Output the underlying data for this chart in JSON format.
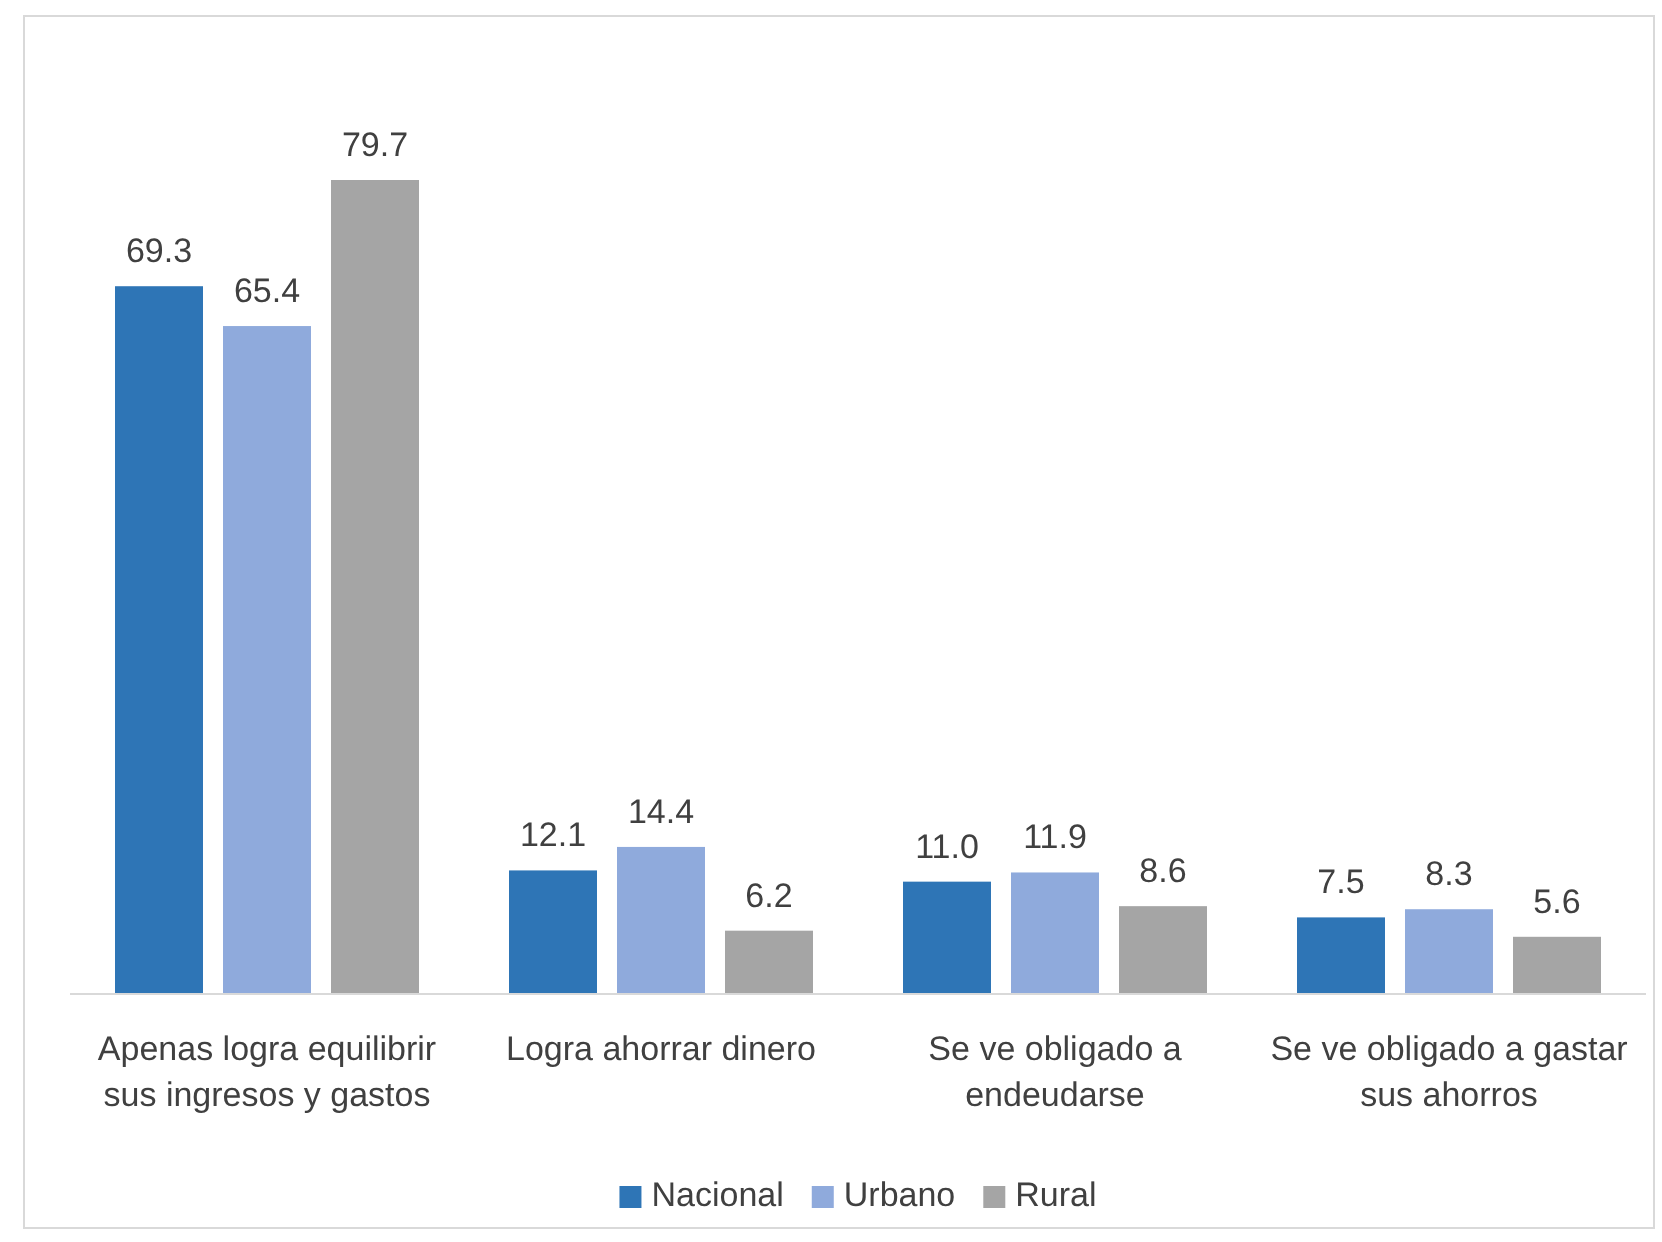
{
  "chart_data": {
    "type": "bar",
    "categories": [
      "Apenas logra equilibrir sus ingresos y gastos",
      "Logra ahorrar dinero",
      "Se ve obligado a endeudarse",
      "Se ve obligado a gastar sus ahorros"
    ],
    "series": [
      {
        "name": "Nacional",
        "color": "#2e75b6",
        "values": [
          69.3,
          12.1,
          11.0,
          7.5
        ],
        "value_labels": [
          "69.3",
          "12.1",
          "11.0",
          "7.5"
        ]
      },
      {
        "name": "Urbano",
        "color": "#8faadc",
        "values": [
          65.4,
          14.4,
          11.9,
          8.3
        ],
        "value_labels": [
          "65.4",
          "14.4",
          "11.9",
          "8.3"
        ]
      },
      {
        "name": "Rural",
        "color": "#a5a5a5",
        "values": [
          79.7,
          6.2,
          8.6,
          5.6
        ],
        "value_labels": [
          "79.7",
          "6.2",
          "8.6",
          "5.6"
        ]
      }
    ],
    "legend": "bottom"
  }
}
